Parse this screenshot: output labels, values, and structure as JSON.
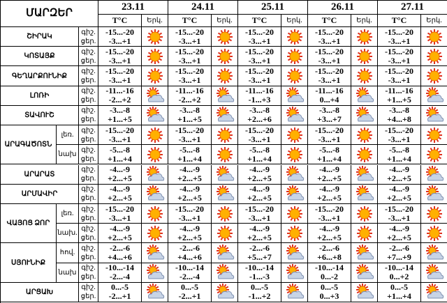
{
  "header": {
    "region_title": "ՄԱՐԶԵՐ",
    "temp_label": "T°C",
    "sky_label": "Երկ.",
    "dates": [
      "23.11",
      "24.11",
      "25.11",
      "26.11",
      "27.11"
    ],
    "night_label": "գիշ.",
    "day_label": "ցեր."
  },
  "regions": [
    {
      "name": "ՇԻՐԱԿ",
      "rows": [
        {
          "icon": "sun",
          "days": [
            {
              "night": "-15...-20",
              "day": "-3...+1"
            },
            {
              "night": "-15...-20",
              "day": "-3...+1"
            },
            {
              "night": "-15...-20",
              "day": "-3...+1"
            },
            {
              "night": "-15...-20",
              "day": "-3...+1"
            },
            {
              "night": "-15...-20",
              "day": "-3...+1"
            }
          ]
        }
      ]
    },
    {
      "name": "ԿՈՏԱՅՔ",
      "rows": [
        {
          "icon": "sun",
          "days": [
            {
              "night": "-15...-20",
              "day": "-3...+1"
            },
            {
              "night": "-15...-20",
              "day": "-3...+1"
            },
            {
              "night": "-15...-20",
              "day": "-3...+1"
            },
            {
              "night": "-15...-20",
              "day": "-3...+1"
            },
            {
              "night": "-15...-20",
              "day": "-3...+1"
            }
          ]
        }
      ]
    },
    {
      "name": "ԳԵՂԱՐՔՈՒՆԻՔ",
      "rows": [
        {
          "icon": "sun",
          "days": [
            {
              "night": "-15...-20",
              "day": "-3...+1"
            },
            {
              "night": "-15...-20",
              "day": "-3...+1"
            },
            {
              "night": "-15...-20",
              "day": "-3...+1"
            },
            {
              "night": "-15...-20",
              "day": "-3...+1"
            },
            {
              "night": "-15...-20",
              "day": "-3...+1"
            }
          ]
        }
      ]
    },
    {
      "name": "ԼՈՌԻ",
      "rows": [
        {
          "icon": "partly",
          "days": [
            {
              "night": "-11...-16",
              "day": "-2...+2"
            },
            {
              "night": "-11...-16",
              "day": "-2...+2"
            },
            {
              "night": "-11...-16",
              "day": "-1...+3"
            },
            {
              "night": "-11...-16",
              "day": "0...+4"
            },
            {
              "night": "-11...-16",
              "day": "+1...+5"
            }
          ]
        }
      ]
    },
    {
      "name": "ՏԱՎՈՒՇ",
      "rows": [
        {
          "icon": "partly",
          "days": [
            {
              "night": "-3...-8",
              "day": "+1...+5"
            },
            {
              "night": "-3...-8",
              "day": "+1...+5"
            },
            {
              "night": "-3...-8",
              "day": "+2...+6"
            },
            {
              "night": "-3...-8",
              "day": "+3...+7"
            },
            {
              "night": "-3...-8",
              "day": "+4...+8"
            }
          ]
        }
      ]
    },
    {
      "name": "ԱՐԱԳԱԾՈՏՆ",
      "rows": [
        {
          "sub": "լեռ.",
          "icon": "sun",
          "days": [
            {
              "night": "-15...-20",
              "day": "-3...+1"
            },
            {
              "night": "-15...-20",
              "day": "-3...+1"
            },
            {
              "night": "-15...-20",
              "day": "-3...+1"
            },
            {
              "night": "-15...-20",
              "day": "-3...+1"
            },
            {
              "night": "-15...-20",
              "day": "-3...+1"
            }
          ]
        },
        {
          "sub": "նախ",
          "icon": "sun",
          "days": [
            {
              "night": "-5...-8",
              "day": "+1...+4"
            },
            {
              "night": "-5...-8",
              "day": "+1...+4"
            },
            {
              "night": "-5...-8",
              "day": "+1...+4"
            },
            {
              "night": "-5...-8",
              "day": "+1...+4"
            },
            {
              "night": "-5...-8",
              "day": "+1...+4"
            }
          ]
        }
      ]
    },
    {
      "name": "ԱՐԱՐԱՏ",
      "rows": [
        {
          "icon": "partly",
          "days": [
            {
              "night": "-4...-9",
              "day": "+2...+5"
            },
            {
              "night": "-4...-9",
              "day": "+2...+5"
            },
            {
              "night": "-4...-9",
              "day": "+2...+5"
            },
            {
              "night": "-4...-9",
              "day": "+2...+5"
            },
            {
              "night": "-4...-9",
              "day": "+2...+5"
            }
          ]
        }
      ]
    },
    {
      "name": "ԱՐՄԱՎԻՐ",
      "rows": [
        {
          "icon": "partly",
          "days": [
            {
              "night": "-4...-9",
              "day": "+2...+5"
            },
            {
              "night": "-4...-9",
              "day": "+2...+5"
            },
            {
              "night": "-4...-9",
              "day": "+2...+5"
            },
            {
              "night": "-4...-9",
              "day": "+2...+5"
            },
            {
              "night": "-4...-9",
              "day": "+2...+5"
            }
          ]
        }
      ]
    },
    {
      "name": "ՎԱՅՈՑ ՁՈՐ",
      "rows": [
        {
          "sub": "լեռ.",
          "icon": "sun",
          "days": [
            {
              "night": "-15...-20",
              "day": "-3...+1"
            },
            {
              "night": "-15...-20",
              "day": "-3...+1"
            },
            {
              "night": "-15...-20",
              "day": "-3...+1"
            },
            {
              "night": "-15...-20",
              "day": "-3...+1"
            },
            {
              "night": "-15...-20",
              "day": "-3...+1"
            }
          ]
        },
        {
          "sub": "նախ.",
          "icon": "sun",
          "days": [
            {
              "night": "-4...-9",
              "day": "+2...+5"
            },
            {
              "night": "-4...-9",
              "day": "+2...+5"
            },
            {
              "night": "-4...-9",
              "day": "+2...+5"
            },
            {
              "night": "-4...-9",
              "day": "+2...+5"
            },
            {
              "night": "-4...-9",
              "day": "+2...+5"
            }
          ]
        }
      ]
    },
    {
      "name": "ՍՅՈՒՆԻՔ",
      "rows": [
        {
          "sub": "հով.",
          "icon": "partly",
          "days": [
            {
              "night": "-2...-6",
              "day": "+4...+6"
            },
            {
              "night": "-2...-6",
              "day": "+4...+6"
            },
            {
              "night": "-2...-6",
              "day": "+5...+7"
            },
            {
              "night": "-2...-6",
              "day": "+6...+8"
            },
            {
              "night": "-2...-6",
              "day": "+7...+9"
            }
          ]
        },
        {
          "sub": "նախ",
          "icon": "partly",
          "days": [
            {
              "night": "-10...-14",
              "day": "-2...-4"
            },
            {
              "night": "-10...-14",
              "day": "-2...-4"
            },
            {
              "night": "-10...-14",
              "day": "-1...-3"
            },
            {
              "night": "-10...-14",
              "day": "0...-2"
            },
            {
              "night": "-10...-14",
              "day": "0...+2"
            }
          ]
        }
      ]
    },
    {
      "name": "ԱՐՑԱԽ",
      "rows": [
        {
          "icon": "partly",
          "days": [
            {
              "night": "0...-5",
              "day": "-2...+1"
            },
            {
              "night": "0...-5",
              "day": "-2...+1"
            },
            {
              "night": "0...-5",
              "day": "-1...+2"
            },
            {
              "night": "0...-5",
              "day": "0...+3"
            },
            {
              "night": "0...-5",
              "day": "+1...+4"
            }
          ]
        }
      ]
    }
  ]
}
